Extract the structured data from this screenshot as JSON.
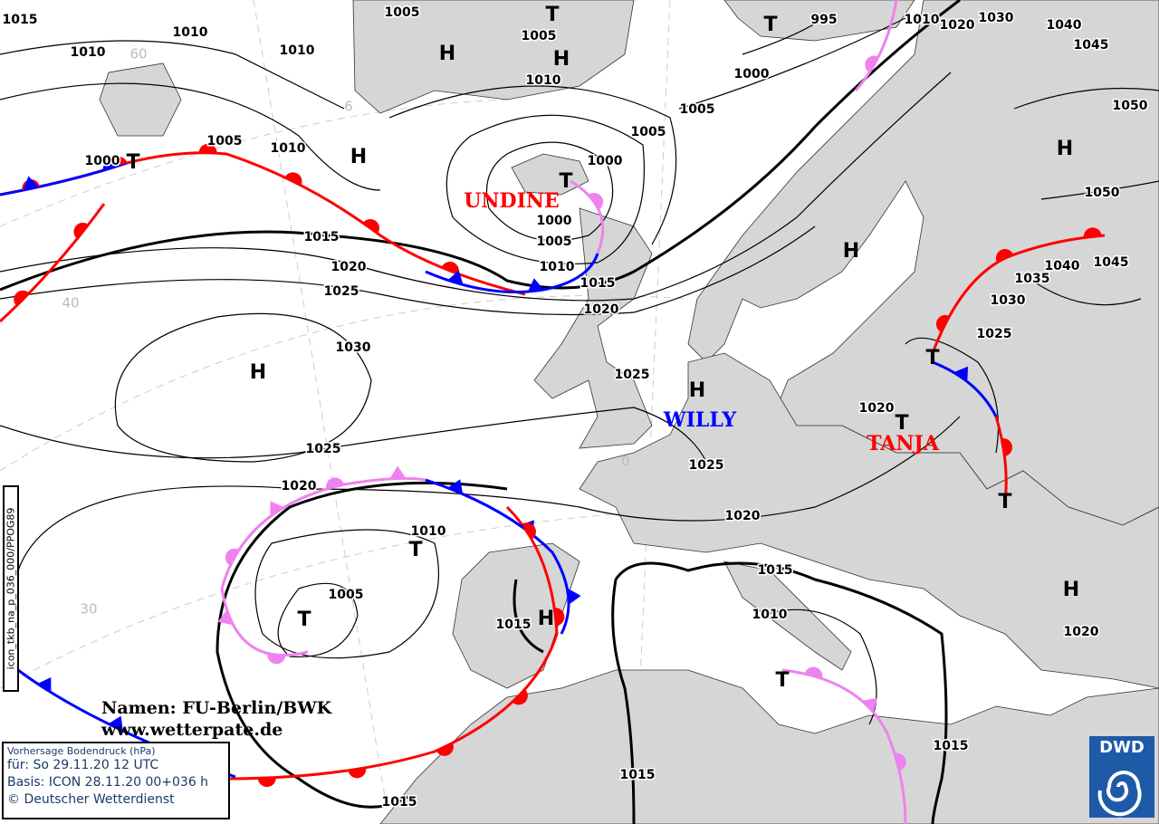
{
  "map": {
    "colors": {
      "land": "#d6d6d6",
      "sea": "#ffffff",
      "isobar": "#000000",
      "warm_front": "#ff0000",
      "cold_front": "#0000ff",
      "occlusion": "#ee82ee"
    },
    "isobar_labels": [
      "1015",
      "1010",
      "1010",
      "1010",
      "1005",
      "1005",
      "1010",
      "995",
      "1010",
      "1020",
      "1030",
      "1040",
      "1045",
      "1000",
      "1005",
      "1005",
      "1050",
      "1050",
      "1005",
      "1010",
      "1000",
      "1000",
      "1000",
      "1005",
      "1010",
      "1015",
      "1015",
      "1020",
      "1025",
      "1020",
      "1030",
      "1025",
      "1025",
      "1025",
      "1020",
      "1020",
      "1010",
      "1005",
      "1015",
      "1015",
      "1010",
      "1015",
      "1015",
      "1015",
      "1020",
      "1020",
      "1025",
      "1030",
      "1035",
      "1040",
      "1045"
    ],
    "pressure_centers": [
      {
        "type": "H"
      },
      {
        "type": "H"
      },
      {
        "type": "H"
      },
      {
        "type": "H"
      },
      {
        "type": "H"
      },
      {
        "type": "H"
      },
      {
        "type": "H"
      },
      {
        "type": "H"
      },
      {
        "type": "H"
      },
      {
        "type": "T"
      },
      {
        "type": "T"
      },
      {
        "type": "T"
      },
      {
        "type": "T"
      },
      {
        "type": "T"
      },
      {
        "type": "T"
      },
      {
        "type": "T"
      },
      {
        "type": "T"
      },
      {
        "type": "T"
      },
      {
        "type": "T"
      },
      {
        "type": "T"
      }
    ],
    "system_names": [
      {
        "name": "UNDINE",
        "color": "#ff0000"
      },
      {
        "name": "WILLY",
        "color": "#0000ff"
      },
      {
        "name": "TANJA",
        "color": "#ff0000"
      }
    ],
    "grid_labels": [
      "60",
      "6",
      "40",
      "30",
      "0"
    ]
  },
  "credit": {
    "line1": "Namen: FU-Berlin/BWK",
    "line2": "www.wetterpate.de"
  },
  "legend": {
    "title": "Vorhersage Bodendruck (hPa)",
    "valid": "für:  So 29.11.20  12 UTC",
    "basis": "Basis: ICON  28.11.20 00+036 h",
    "copyright": "© Deutscher Wetterdienst"
  },
  "product_code": "icon_tkb_na_p_036_000/PPOG89",
  "logo": {
    "text": "DWD"
  }
}
